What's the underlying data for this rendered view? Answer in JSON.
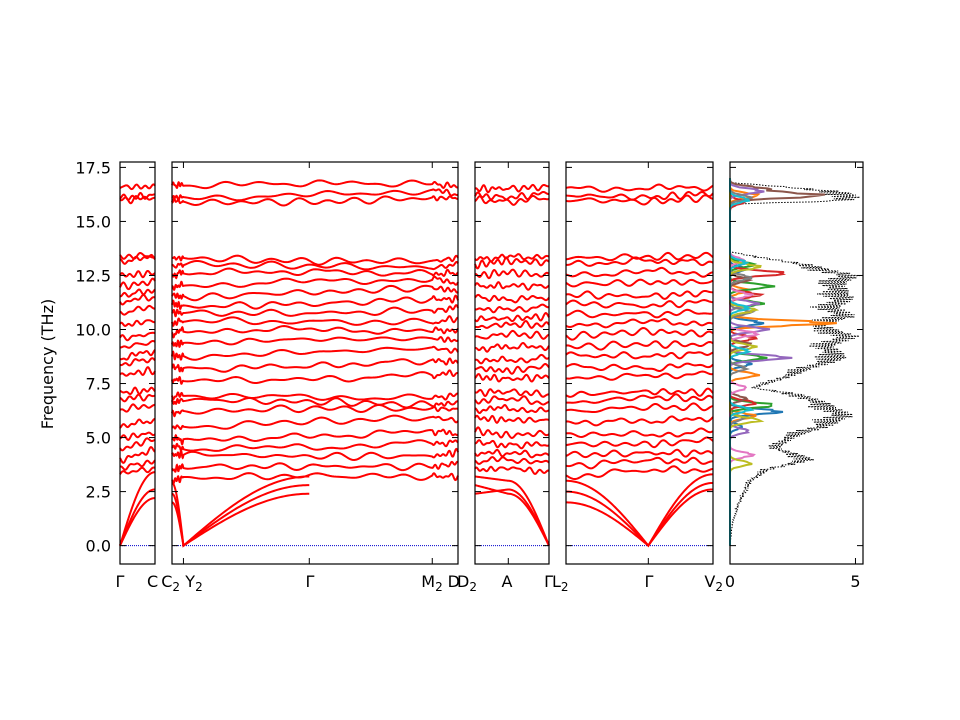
{
  "chart_data": {
    "type": "line",
    "ylabel": "Frequency (THz)",
    "ylim": [
      -0.85,
      17.75
    ],
    "yticks": [
      0.0,
      2.5,
      5.0,
      7.5,
      10.0,
      12.5,
      15.0,
      17.5
    ],
    "ytick_labels": [
      "0.0",
      "2.5",
      "5.0",
      "7.5",
      "10.0",
      "12.5",
      "15.0",
      "17.5"
    ],
    "colors": {
      "bands": "#ff0000",
      "zero_line": "#0000cc",
      "total_dos": "#000000",
      "pdos": [
        "#1f77b4",
        "#ff7f0e",
        "#2ca02c",
        "#d62728",
        "#9467bd",
        "#8c564b",
        "#e377c2",
        "#7f7f7f",
        "#bcbd22",
        "#17becf"
      ]
    },
    "segments": [
      {
        "path": [
          "Γ",
          "C"
        ],
        "acoustic": [
          [
            0.0,
            2.2
          ],
          [
            0.0,
            2.6
          ],
          [
            0.0,
            3.4
          ]
        ],
        "optical_start": [
          3.3,
          3.6,
          4.0,
          4.5,
          5.0,
          5.5,
          6.3,
          6.8,
          7.1,
          7.9,
          8.4,
          8.7,
          9.2,
          9.6,
          10.2,
          10.8,
          11.3,
          11.6,
          12.0,
          12.5,
          13.2,
          13.4,
          16.0,
          16.1,
          16.6
        ],
        "optical_end": [
          3.6,
          3.9,
          4.4,
          4.9,
          5.2,
          5.8,
          6.5,
          6.9,
          7.2,
          8.1,
          8.6,
          9.0,
          9.4,
          9.8,
          10.4,
          11.0,
          11.5,
          11.8,
          12.2,
          12.6,
          13.3,
          13.4,
          16.1,
          16.2,
          16.6
        ]
      },
      {
        "path": [
          "C2",
          "Y2",
          "Γ",
          "M2",
          "D"
        ],
        "acoustic": [
          [
            2.0,
            0.0,
            2.4
          ],
          [
            2.4,
            0.0,
            2.8
          ],
          [
            2.9,
            0.0,
            3.2
          ]
        ],
        "optical_start": [
          3.0,
          3.5,
          4.2,
          4.6,
          5.0,
          5.5,
          6.1,
          6.6,
          6.9,
          7.7,
          8.3,
          8.8,
          9.3,
          9.8,
          10.3,
          10.8,
          11.2,
          11.6,
          12.0,
          12.5,
          12.9,
          13.3,
          16.0,
          16.2,
          16.7
        ],
        "optical_end": [
          3.2,
          3.8,
          4.3,
          4.8,
          5.2,
          5.8,
          6.3,
          6.6,
          7.0,
          8.0,
          8.5,
          9.0,
          9.5,
          10.0,
          10.5,
          11.0,
          11.4,
          11.8,
          12.2,
          12.6,
          13.0,
          13.3,
          16.1,
          16.3,
          16.6
        ]
      },
      {
        "path": [
          "D2",
          "A",
          "Γ"
        ],
        "acoustic": [
          [
            2.4,
            2.6,
            0.0
          ],
          [
            2.8,
            2.4,
            0.0
          ],
          [
            3.2,
            3.0,
            0.0
          ]
        ],
        "optical_start": [
          3.5,
          3.9,
          4.3,
          4.8,
          5.3,
          5.9,
          6.3,
          6.7,
          7.1,
          7.8,
          8.2,
          8.6,
          9.1,
          9.6,
          10.1,
          10.5,
          11.0,
          11.5,
          12.0,
          12.5,
          13.0,
          13.3,
          16.0,
          16.2,
          16.5
        ],
        "optical_end": [
          3.4,
          3.8,
          4.2,
          4.7,
          5.2,
          5.8,
          6.2,
          6.6,
          7.0,
          7.8,
          8.3,
          8.7,
          9.2,
          9.7,
          10.2,
          10.6,
          11.1,
          11.5,
          12.0,
          12.5,
          13.1,
          13.4,
          16.1,
          16.3,
          16.6
        ]
      },
      {
        "path": [
          "L2",
          "Γ",
          "V2"
        ],
        "acoustic": [
          [
            2.0,
            0.0,
            2.6
          ],
          [
            2.5,
            0.0,
            2.9
          ],
          [
            3.0,
            0.0,
            3.3
          ]
        ],
        "optical_start": [
          3.2,
          3.7,
          4.2,
          4.7,
          5.2,
          5.7,
          6.2,
          6.6,
          7.0,
          7.8,
          8.3,
          8.8,
          9.2,
          9.7,
          10.2,
          10.7,
          11.2,
          11.6,
          12.1,
          12.5,
          13.0,
          13.3,
          16.0,
          16.2,
          16.5
        ],
        "optical_end": [
          3.5,
          3.9,
          4.3,
          4.9,
          5.3,
          5.9,
          6.4,
          6.8,
          7.1,
          8.0,
          8.4,
          8.9,
          9.3,
          9.8,
          10.3,
          10.8,
          11.3,
          11.7,
          12.2,
          12.6,
          13.1,
          13.4,
          16.1,
          16.3,
          16.6
        ]
      }
    ],
    "x_tick_labels": [
      {
        "text": "Γ",
        "sub": ""
      },
      {
        "text": "C",
        "sub": ""
      },
      {
        "text": "C",
        "sub": "2"
      },
      {
        "text": "Y",
        "sub": "2"
      },
      {
        "text": "Γ",
        "sub": ""
      },
      {
        "text": "M",
        "sub": "2"
      },
      {
        "text": "D",
        "sub": ""
      },
      {
        "text": "D",
        "sub": "2"
      },
      {
        "text": "A",
        "sub": ""
      },
      {
        "text": "Γ",
        "sub": ""
      },
      {
        "text": "L",
        "sub": "2"
      },
      {
        "text": "Γ",
        "sub": ""
      },
      {
        "text": "V",
        "sub": "2"
      }
    ],
    "dos": {
      "xlim": [
        0,
        5.3
      ],
      "xticks": [
        0,
        5
      ],
      "xtick_labels": [
        "0",
        "5"
      ],
      "total_peaks": [
        [
          0.0,
          0.0
        ],
        [
          1.0,
          0.1
        ],
        [
          2.0,
          0.4
        ],
        [
          3.0,
          0.9
        ],
        [
          3.5,
          1.6
        ],
        [
          4.0,
          3.5
        ],
        [
          4.5,
          2.0
        ],
        [
          5.0,
          2.6
        ],
        [
          5.5,
          4.0
        ],
        [
          6.0,
          5.0
        ],
        [
          6.5,
          4.2
        ],
        [
          7.0,
          3.0
        ],
        [
          7.3,
          1.0
        ],
        [
          7.7,
          2.2
        ],
        [
          8.2,
          3.4
        ],
        [
          8.7,
          4.8
        ],
        [
          9.2,
          4.2
        ],
        [
          9.7,
          5.2
        ],
        [
          10.2,
          3.8
        ],
        [
          10.6,
          5.1
        ],
        [
          11.0,
          4.5
        ],
        [
          11.5,
          5.0
        ],
        [
          12.0,
          4.6
        ],
        [
          12.5,
          5.2
        ],
        [
          13.0,
          3.3
        ],
        [
          13.4,
          1.0
        ],
        [
          13.6,
          0.0
        ],
        [
          15.8,
          0.0
        ],
        [
          15.95,
          4.8
        ],
        [
          16.15,
          5.3
        ],
        [
          16.35,
          4.9
        ],
        [
          16.6,
          2.4
        ],
        [
          16.8,
          0.0
        ],
        [
          17.75,
          0.0
        ]
      ],
      "pdos_peaks": [
        [
          [
            5.5,
            0.5
          ],
          [
            6.2,
            2.2
          ],
          [
            8.4,
            0.9
          ],
          [
            10.3,
            1.4
          ],
          [
            12.8,
            0.7
          ]
        ],
        [
          [
            6.0,
            1.1
          ],
          [
            7.9,
            1.2
          ],
          [
            10.3,
            4.4
          ],
          [
            11.8,
            0.8
          ],
          [
            16.2,
            1.2
          ]
        ],
        [
          [
            6.5,
            1.9
          ],
          [
            8.7,
            1.5
          ],
          [
            11.2,
            1.4
          ],
          [
            12.0,
            1.8
          ],
          [
            13.0,
            1.0
          ]
        ],
        [
          [
            6.6,
            1.1
          ],
          [
            9.6,
            1.1
          ],
          [
            11.6,
            1.3
          ],
          [
            12.6,
            2.4
          ],
          [
            15.9,
            0.6
          ]
        ],
        [
          [
            5.3,
            0.8
          ],
          [
            8.7,
            2.5
          ],
          [
            10.0,
            1.6
          ],
          [
            11.2,
            1.2
          ],
          [
            16.4,
            1.4
          ]
        ],
        [
          [
            6.8,
            0.7
          ],
          [
            9.3,
            0.9
          ],
          [
            12.3,
            0.8
          ],
          [
            16.2,
            3.9
          ],
          [
            16.5,
            1.5
          ]
        ],
        [
          [
            4.2,
            1.0
          ],
          [
            7.3,
            0.7
          ],
          [
            9.8,
            1.2
          ],
          [
            11.6,
            0.9
          ],
          [
            13.2,
            0.6
          ]
        ],
        [
          [
            5.9,
            0.6
          ],
          [
            8.2,
            0.7
          ],
          [
            10.8,
            0.9
          ],
          [
            12.4,
            0.9
          ],
          [
            16.1,
            0.9
          ]
        ],
        [
          [
            3.8,
            0.9
          ],
          [
            5.8,
            1.3
          ],
          [
            9.2,
            1.1
          ],
          [
            10.9,
            1.1
          ],
          [
            12.9,
            1.3
          ]
        ],
        [
          [
            6.3,
            0.9
          ],
          [
            9.0,
            0.8
          ],
          [
            11.0,
            0.8
          ],
          [
            13.1,
            0.7
          ],
          [
            16.0,
            0.8
          ]
        ]
      ]
    }
  }
}
